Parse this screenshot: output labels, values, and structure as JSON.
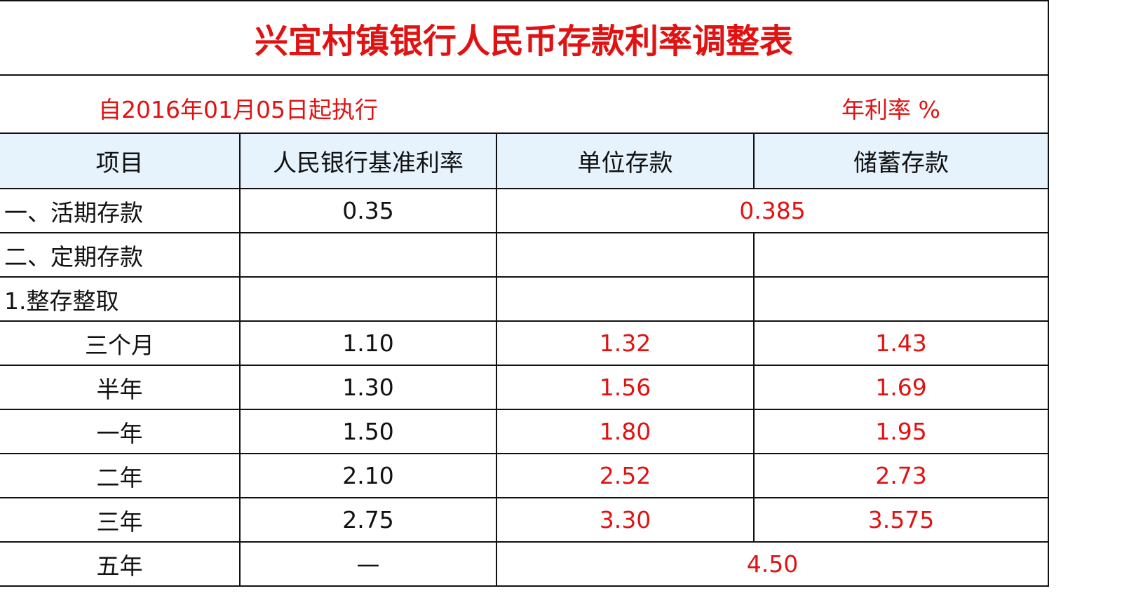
{
  "title": "兴宜村镇银行人民币存款利率调整表",
  "effective_date": "自2016年01月05日起执行",
  "unit": "年利率 %",
  "headers": [
    "项目",
    "人民银行基准利率",
    "单位存款",
    "储蓄存款"
  ],
  "rows": [
    {
      "item": "一、活期存款",
      "base": "0.35",
      "merged": "0.385"
    },
    {
      "item": "二、定期存款",
      "base": "",
      "unit": "",
      "savings": ""
    },
    {
      "item": "1.整存整取",
      "base": "",
      "unit": "",
      "savings": ""
    },
    {
      "item": "三个月",
      "base": "1.10",
      "unit": "1.32",
      "savings": "1.43"
    },
    {
      "item": "半年",
      "base": "1.30",
      "unit": "1.56",
      "savings": "1.69"
    },
    {
      "item": "一年",
      "base": "1.50",
      "unit": "1.80",
      "savings": "1.95"
    },
    {
      "item": "二年",
      "base": "2.10",
      "unit": "2.52",
      "savings": "2.73"
    },
    {
      "item": "三年",
      "base": "2.75",
      "unit": "3.30",
      "savings": "3.575"
    },
    {
      "item": "五年",
      "base": "—",
      "merged": "4.50"
    }
  ],
  "colors": {
    "accent_red": "#e01212",
    "header_bg": "#e6f2fc"
  }
}
